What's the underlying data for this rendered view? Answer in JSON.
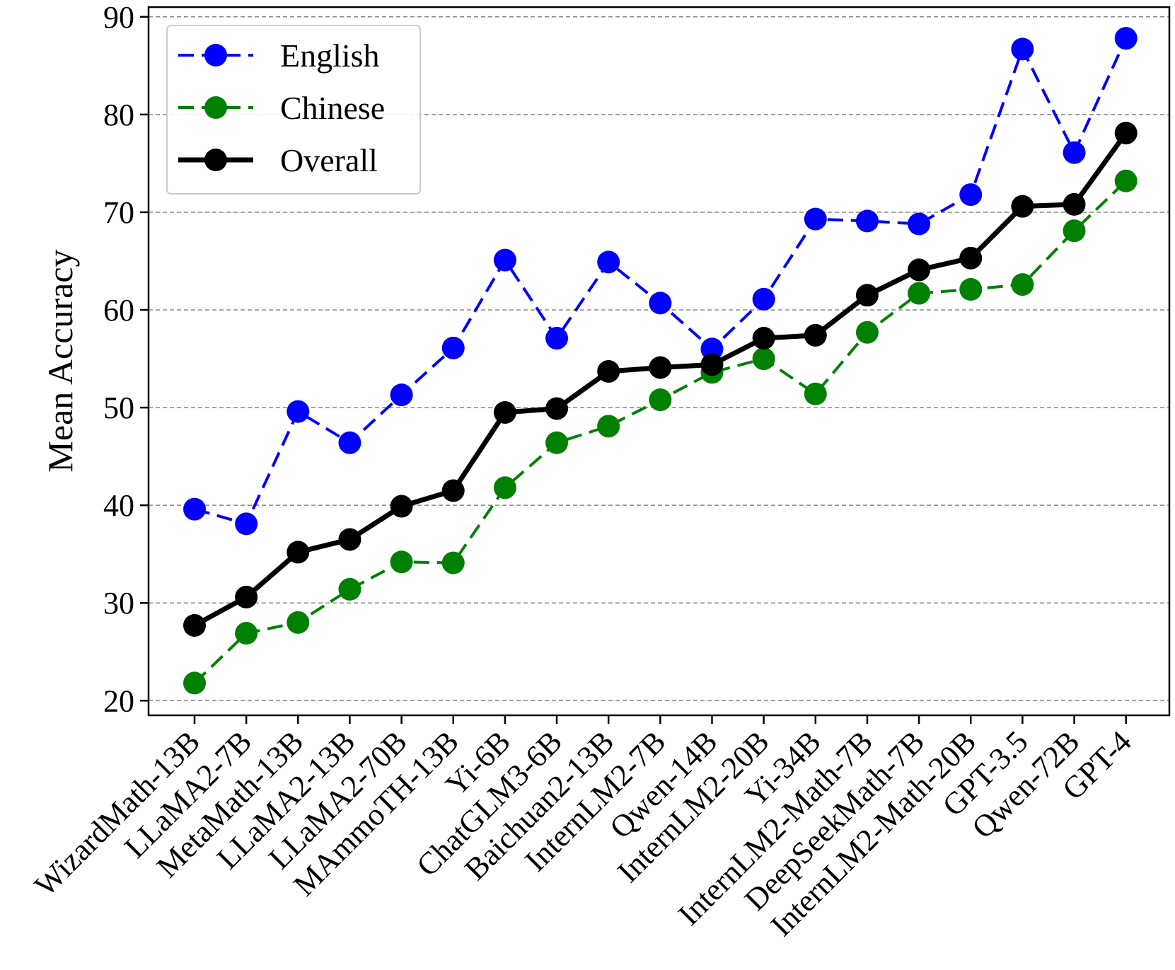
{
  "chart_data": {
    "type": "line",
    "title": "",
    "xlabel": "",
    "ylabel": "Mean Accuracy",
    "ylim": [
      18.5,
      91
    ],
    "yticks": [
      20,
      30,
      40,
      50,
      60,
      70,
      80,
      90
    ],
    "ytick_labels": [
      "20",
      "30",
      "40",
      "50",
      "60",
      "70",
      "80",
      "90"
    ],
    "grid": "horizontal-dashed",
    "legend_position": "top-left",
    "categories": [
      "WizardMath-13B",
      "LLaMA2-7B",
      "MetaMath-13B",
      "LLaMA2-13B",
      "LLaMA2-70B",
      "MAmmoTH-13B",
      "Yi-6B",
      "ChatGLM3-6B",
      "Baichuan2-13B",
      "InternLM2-7B",
      "Qwen-14B",
      "InternLM2-20B",
      "Yi-34B",
      "InternLM2-Math-7B",
      "DeepSeekMath-7B",
      "InternLM2-Math-20B",
      "GPT-3.5",
      "Qwen-72B",
      "GPT-4"
    ],
    "series": [
      {
        "name": "English",
        "color": "#0000ff",
        "line_style": "dashed",
        "values": [
          39.6,
          38.1,
          49.6,
          46.4,
          51.3,
          56.1,
          65.1,
          57.1,
          64.9,
          60.7,
          56.0,
          61.1,
          69.3,
          69.1,
          68.8,
          71.8,
          86.7,
          76.1,
          87.8
        ]
      },
      {
        "name": "Chinese",
        "color": "#008000",
        "line_style": "dashed",
        "values": [
          21.8,
          26.9,
          28.0,
          31.4,
          34.2,
          34.1,
          41.8,
          46.4,
          48.1,
          50.8,
          53.6,
          55.0,
          51.4,
          57.7,
          61.7,
          62.1,
          62.6,
          68.1,
          73.2
        ]
      },
      {
        "name": "Overall",
        "color": "#000000",
        "line_style": "solid",
        "values": [
          27.7,
          30.6,
          35.2,
          36.5,
          39.9,
          41.5,
          49.5,
          49.9,
          53.7,
          54.1,
          54.4,
          57.1,
          57.4,
          61.5,
          64.1,
          65.3,
          70.6,
          70.8,
          78.1
        ]
      }
    ]
  }
}
